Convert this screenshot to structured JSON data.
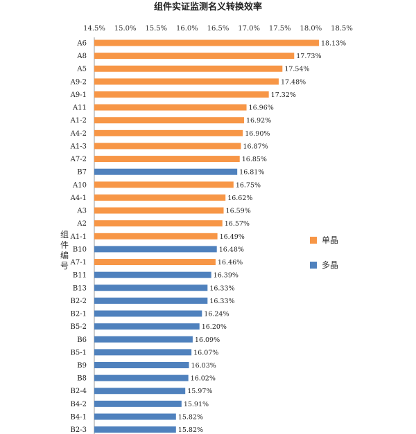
{
  "chart_data": {
    "type": "bar",
    "orientation": "horizontal",
    "title": "组件实证监测名义转换效率",
    "ylabel": "组件编号",
    "xlabel": "",
    "x_ticks": [
      "14.5%",
      "15.0%",
      "15.5%",
      "16.0%",
      "16.5%",
      "17.0%",
      "17.5%",
      "18.0%",
      "18.5%"
    ],
    "xlim": [
      14.5,
      18.5
    ],
    "x_axis_position": "top",
    "grid": false,
    "legend_position": "right",
    "series": [
      {
        "name": "单晶",
        "color": "#F79646"
      },
      {
        "name": "多晶",
        "color": "#4F81BD"
      }
    ],
    "bars": [
      {
        "category": "A6",
        "value": 18.13,
        "label": "18.13%",
        "series": "单晶"
      },
      {
        "category": "A8",
        "value": 17.73,
        "label": "17.73%",
        "series": "单晶"
      },
      {
        "category": "A5",
        "value": 17.54,
        "label": "17.54%",
        "series": "单晶"
      },
      {
        "category": "A9-2",
        "value": 17.48,
        "label": "17.48%",
        "series": "单晶"
      },
      {
        "category": "A9-1",
        "value": 17.32,
        "label": "17.32%",
        "series": "单晶"
      },
      {
        "category": "A11",
        "value": 16.96,
        "label": "16.96%",
        "series": "单晶"
      },
      {
        "category": "A1-2",
        "value": 16.92,
        "label": "16.92%",
        "series": "单晶"
      },
      {
        "category": "A4-2",
        "value": 16.9,
        "label": "16.90%",
        "series": "单晶"
      },
      {
        "category": "A1-3",
        "value": 16.87,
        "label": "16.87%",
        "series": "单晶"
      },
      {
        "category": "A7-2",
        "value": 16.85,
        "label": "16.85%",
        "series": "单晶"
      },
      {
        "category": "B7",
        "value": 16.81,
        "label": "16.81%",
        "series": "多晶"
      },
      {
        "category": "A10",
        "value": 16.75,
        "label": "16.75%",
        "series": "单晶"
      },
      {
        "category": "A4-1",
        "value": 16.62,
        "label": "16.62%",
        "series": "单晶"
      },
      {
        "category": "A3",
        "value": 16.59,
        "label": "16.59%",
        "series": "单晶"
      },
      {
        "category": "A2",
        "value": 16.57,
        "label": "16.57%",
        "series": "单晶"
      },
      {
        "category": "A1-1",
        "value": 16.49,
        "label": "16.49%",
        "series": "单晶"
      },
      {
        "category": "B10",
        "value": 16.48,
        "label": "16.48%",
        "series": "多晶"
      },
      {
        "category": "A7-1",
        "value": 16.46,
        "label": "16.46%",
        "series": "单晶"
      },
      {
        "category": "B11",
        "value": 16.39,
        "label": "16.39%",
        "series": "多晶"
      },
      {
        "category": "B13",
        "value": 16.33,
        "label": "16.33%",
        "series": "多晶"
      },
      {
        "category": "B2-2",
        "value": 16.33,
        "label": "16.33%",
        "series": "多晶"
      },
      {
        "category": "B2-1",
        "value": 16.24,
        "label": "16.24%",
        "series": "多晶"
      },
      {
        "category": "B5-2",
        "value": 16.2,
        "label": "16.20%",
        "series": "多晶"
      },
      {
        "category": "B6",
        "value": 16.09,
        "label": "16.09%",
        "series": "多晶"
      },
      {
        "category": "B5-1",
        "value": 16.07,
        "label": "16.07%",
        "series": "多晶"
      },
      {
        "category": "B9",
        "value": 16.03,
        "label": "16.03%",
        "series": "多晶"
      },
      {
        "category": "B8",
        "value": 16.02,
        "label": "16.02%",
        "series": "多晶"
      },
      {
        "category": "B2-4",
        "value": 15.97,
        "label": "15.97%",
        "series": "多晶"
      },
      {
        "category": "B4-2",
        "value": 15.91,
        "label": "15.91%",
        "series": "多晶"
      },
      {
        "category": "B4-1",
        "value": 15.82,
        "label": "15.82%",
        "series": "多晶"
      },
      {
        "category": "B2-3",
        "value": 15.82,
        "label": "15.82%",
        "series": "多晶"
      }
    ]
  }
}
